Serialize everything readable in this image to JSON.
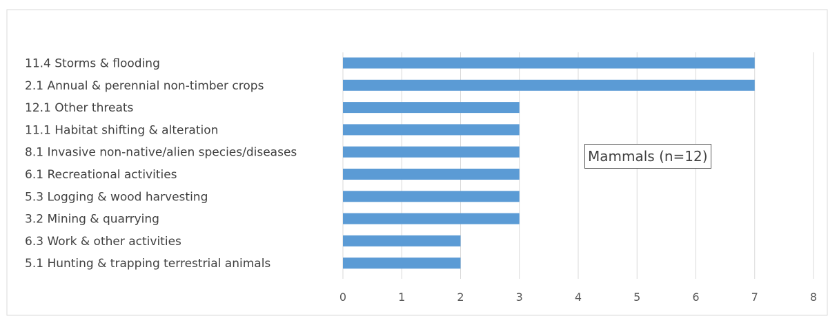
{
  "chart_data": {
    "type": "bar",
    "orientation": "horizontal",
    "categories": [
      "11.4 Storms & flooding",
      "2.1 Annual & perennial non-timber crops",
      "12.1 Other threats",
      "11.1 Habitat shifting & alteration",
      "8.1 Invasive non-native/alien species/diseases",
      "6.1 Recreational activities",
      "5.3 Logging & wood harvesting",
      "3.2 Mining & quarrying",
      "6.3 Work & other activities",
      "5.1 Hunting & trapping terrestrial animals"
    ],
    "values": [
      7,
      7,
      3,
      3,
      3,
      3,
      3,
      3,
      2,
      2
    ],
    "xlim": [
      0,
      8
    ],
    "xticks": [
      "0",
      "1",
      "2",
      "3",
      "4",
      "5",
      "6",
      "7",
      "8"
    ],
    "annotation": "Mammals (n=12)",
    "bar_color": "#5b9bd5",
    "grid": true,
    "legend": "none"
  }
}
